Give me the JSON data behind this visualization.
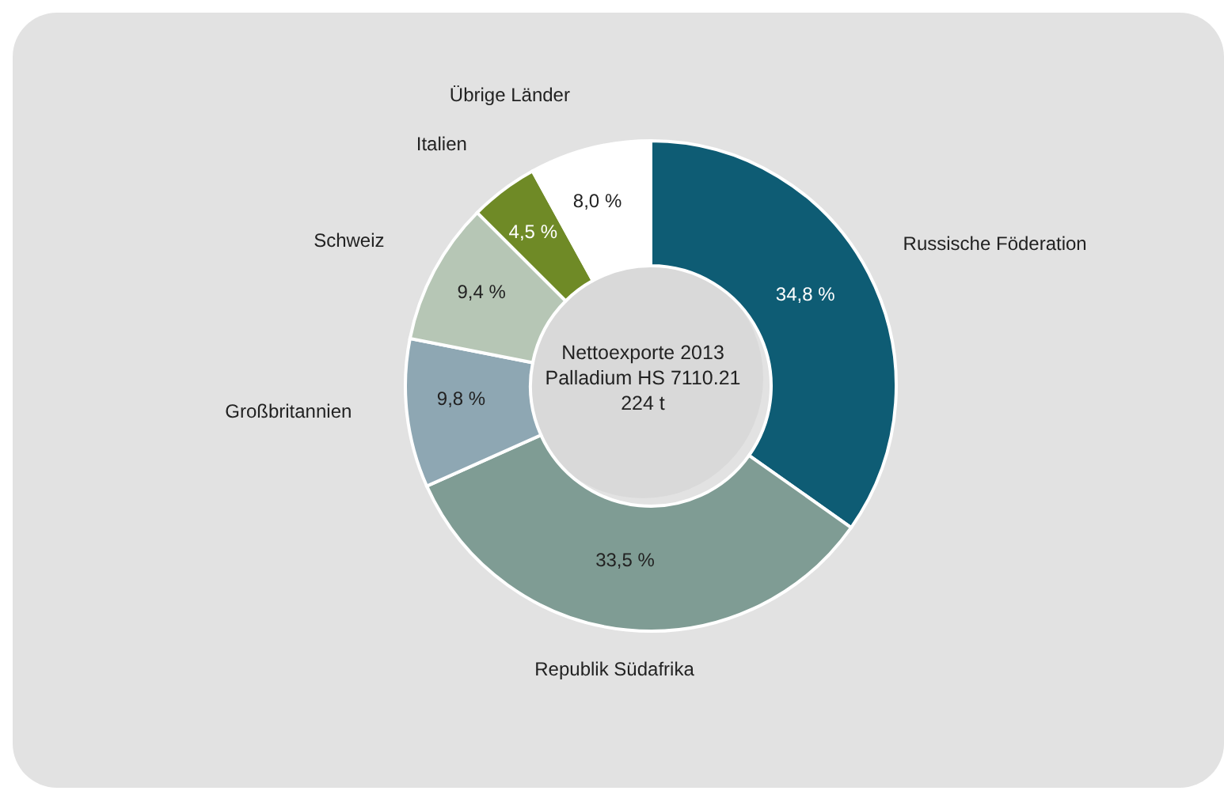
{
  "chart_data": {
    "type": "donut",
    "categories": [
      "Russische Föderation",
      "Republik Südafrika",
      "Großbritannien",
      "Schweiz",
      "Italien",
      "Übrige Länder"
    ],
    "values": [
      34.8,
      33.5,
      9.8,
      9.4,
      4.5,
      8.0
    ],
    "colors": [
      "#0e5c74",
      "#7f9c94",
      "#8ea7b3",
      "#b6c6b5",
      "#6f8a26",
      "#ffffff"
    ],
    "value_labels": [
      "34,8 %",
      "33,5 %",
      "9,8 %",
      "9,4 %",
      "4,5 %",
      "8,0 %"
    ],
    "annotations": [
      "Nettoexporte 2013",
      "Palladium HS 7110.21",
      "224 t"
    ]
  }
}
